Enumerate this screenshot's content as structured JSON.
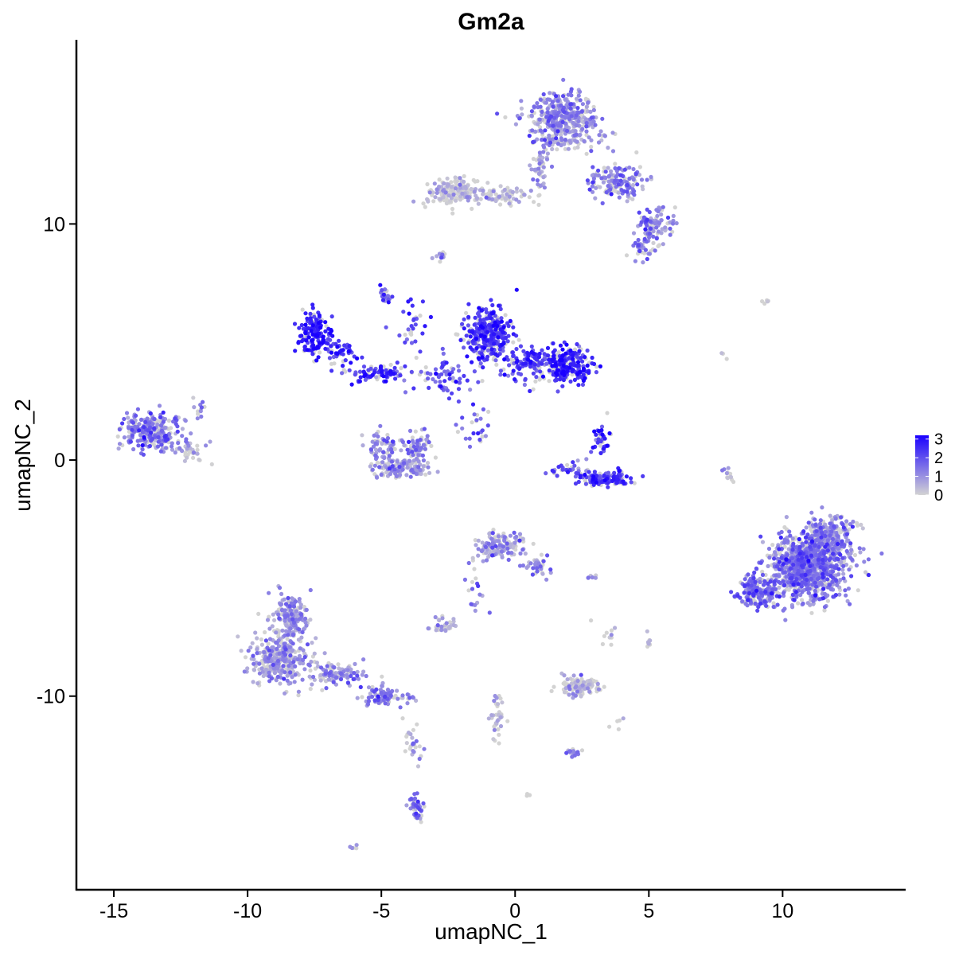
{
  "chart_data": {
    "type": "scatter",
    "title": "Gm2a",
    "xlabel": "umapNC_1",
    "ylabel": "umapNC_2",
    "xlim": [
      -16.4,
      14.6
    ],
    "ylim": [
      -18.2,
      17.8
    ],
    "x_ticks": [
      -15,
      -10,
      -5,
      0,
      5,
      10
    ],
    "x_tick_labels": [
      "-15",
      "-10",
      "-5",
      "0",
      "5",
      "10"
    ],
    "y_ticks": [
      -10,
      0,
      10
    ],
    "y_tick_labels": [
      "-10",
      "0",
      "10"
    ],
    "grid": false,
    "legend": {
      "placement": "right",
      "type": "colorbar",
      "min": 0,
      "max": 3,
      "ticks": [
        0,
        1,
        2,
        3
      ],
      "tick_labels": [
        "0",
        "1",
        "2",
        "3"
      ],
      "low_color": "#d3d3d3",
      "high_color": "#1a00ff"
    },
    "expression_scale_max": 3.2,
    "clusters": [
      {
        "x": 1.8,
        "y": 14.4,
        "sx": 1.2,
        "sy": 1.2,
        "n": 420,
        "expr": 1.0
      },
      {
        "x": 3.8,
        "y": 11.8,
        "sx": 1.0,
        "sy": 0.6,
        "n": 150,
        "expr": 1.2
      },
      {
        "x": 5.2,
        "y": 10.0,
        "sx": 0.6,
        "sy": 0.6,
        "n": 90,
        "expr": 1.3
      },
      {
        "x": 4.8,
        "y": 9.0,
        "sx": 0.5,
        "sy": 0.5,
        "n": 40,
        "expr": 1.2
      },
      {
        "x": -2.3,
        "y": 11.4,
        "sx": 0.9,
        "sy": 0.5,
        "n": 170,
        "expr": 0.3
      },
      {
        "x": -0.6,
        "y": 11.2,
        "sx": 1.0,
        "sy": 0.3,
        "n": 70,
        "expr": 0.3
      },
      {
        "x": 0.9,
        "y": 12.2,
        "sx": 0.3,
        "sy": 0.9,
        "n": 40,
        "expr": 0.6
      },
      {
        "x": -2.8,
        "y": 8.6,
        "sx": 0.2,
        "sy": 0.2,
        "n": 12,
        "expr": 1.2
      },
      {
        "x": 9.5,
        "y": 6.7,
        "sx": 0.3,
        "sy": 0.1,
        "n": 5,
        "expr": 0.1
      },
      {
        "x": -7.5,
        "y": 5.3,
        "sx": 0.6,
        "sy": 0.8,
        "n": 160,
        "expr": 2.7
      },
      {
        "x": -6.6,
        "y": 4.6,
        "sx": 0.6,
        "sy": 0.4,
        "n": 50,
        "expr": 2.4
      },
      {
        "x": -5.0,
        "y": 3.7,
        "sx": 1.1,
        "sy": 0.3,
        "n": 90,
        "expr": 2.3
      },
      {
        "x": -4.8,
        "y": 7.0,
        "sx": 0.2,
        "sy": 0.4,
        "n": 22,
        "expr": 2.0
      },
      {
        "x": -3.9,
        "y": 5.7,
        "sx": 0.5,
        "sy": 1.2,
        "n": 30,
        "expr": 2.1
      },
      {
        "x": -2.7,
        "y": 3.5,
        "sx": 1.0,
        "sy": 0.8,
        "n": 60,
        "expr": 2.0
      },
      {
        "x": -1.5,
        "y": 1.5,
        "sx": 0.6,
        "sy": 0.8,
        "n": 25,
        "expr": 2.0
      },
      {
        "x": -1.0,
        "y": 5.3,
        "sx": 0.8,
        "sy": 1.1,
        "n": 330,
        "expr": 2.3
      },
      {
        "x": 0.5,
        "y": 4.1,
        "sx": 0.8,
        "sy": 0.6,
        "n": 120,
        "expr": 2.2
      },
      {
        "x": 2.0,
        "y": 4.0,
        "sx": 0.8,
        "sy": 0.7,
        "n": 230,
        "expr": 2.6
      },
      {
        "x": -4.9,
        "y": 0.6,
        "sx": 0.6,
        "sy": 0.6,
        "n": 60,
        "expr": 1.0
      },
      {
        "x": -4.3,
        "y": -0.3,
        "sx": 1.0,
        "sy": 0.4,
        "n": 140,
        "expr": 0.9
      },
      {
        "x": -3.6,
        "y": 0.6,
        "sx": 0.4,
        "sy": 0.7,
        "n": 60,
        "expr": 1.2
      },
      {
        "x": 3.3,
        "y": -0.8,
        "sx": 0.9,
        "sy": 0.3,
        "n": 130,
        "expr": 2.2
      },
      {
        "x": 3.2,
        "y": 0.8,
        "sx": 0.3,
        "sy": 0.6,
        "n": 35,
        "expr": 2.3
      },
      {
        "x": 2.0,
        "y": -0.4,
        "sx": 0.8,
        "sy": 0.3,
        "n": 30,
        "expr": 2.0
      },
      {
        "x": -13.6,
        "y": 1.2,
        "sx": 0.9,
        "sy": 0.7,
        "n": 260,
        "expr": 1.3
      },
      {
        "x": -12.2,
        "y": 0.4,
        "sx": 0.5,
        "sy": 0.4,
        "n": 35,
        "expr": 0.7
      },
      {
        "x": -11.8,
        "y": 2.1,
        "sx": 0.3,
        "sy": 0.4,
        "n": 12,
        "expr": 1.2
      },
      {
        "x": 8.0,
        "y": -0.6,
        "sx": 0.2,
        "sy": 0.6,
        "n": 12,
        "expr": 0.3
      },
      {
        "x": 7.8,
        "y": 4.5,
        "sx": 0.1,
        "sy": 0.3,
        "n": 3,
        "expr": 0.2
      },
      {
        "x": 11.0,
        "y": -4.5,
        "sx": 1.3,
        "sy": 1.3,
        "n": 1000,
        "expr": 1.3
      },
      {
        "x": 9.1,
        "y": -5.6,
        "sx": 0.7,
        "sy": 0.6,
        "n": 200,
        "expr": 1.5
      },
      {
        "x": 11.8,
        "y": -3.2,
        "sx": 0.7,
        "sy": 0.8,
        "n": 200,
        "expr": 1.0
      },
      {
        "x": -0.6,
        "y": -3.6,
        "sx": 0.8,
        "sy": 0.5,
        "n": 140,
        "expr": 0.8
      },
      {
        "x": 0.8,
        "y": -4.5,
        "sx": 0.5,
        "sy": 0.4,
        "n": 40,
        "expr": 1.1
      },
      {
        "x": -1.5,
        "y": -5.5,
        "sx": 0.3,
        "sy": 1.0,
        "n": 18,
        "expr": 1.2
      },
      {
        "x": -2.6,
        "y": -7.0,
        "sx": 0.5,
        "sy": 0.3,
        "n": 35,
        "expr": 0.4
      },
      {
        "x": 2.9,
        "y": -5.0,
        "sx": 0.3,
        "sy": 0.1,
        "n": 6,
        "expr": 0.5
      },
      {
        "x": 5.0,
        "y": -7.6,
        "sx": 0.1,
        "sy": 0.3,
        "n": 8,
        "expr": 0.3
      },
      {
        "x": -8.4,
        "y": -6.6,
        "sx": 0.6,
        "sy": 0.8,
        "n": 180,
        "expr": 0.8
      },
      {
        "x": -8.8,
        "y": -8.5,
        "sx": 1.1,
        "sy": 1.0,
        "n": 330,
        "expr": 0.8
      },
      {
        "x": -6.6,
        "y": -9.1,
        "sx": 0.8,
        "sy": 0.4,
        "n": 90,
        "expr": 1.1
      },
      {
        "x": -4.8,
        "y": -10.0,
        "sx": 0.7,
        "sy": 0.4,
        "n": 90,
        "expr": 1.2
      },
      {
        "x": -3.8,
        "y": -12.0,
        "sx": 0.3,
        "sy": 1.0,
        "n": 25,
        "expr": 0.6
      },
      {
        "x": -3.7,
        "y": -14.7,
        "sx": 0.3,
        "sy": 0.5,
        "n": 45,
        "expr": 1.5
      },
      {
        "x": -6.0,
        "y": -16.4,
        "sx": 0.2,
        "sy": 0.1,
        "n": 5,
        "expr": 0.1
      },
      {
        "x": 2.4,
        "y": -9.6,
        "sx": 0.7,
        "sy": 0.3,
        "n": 130,
        "expr": 0.2
      },
      {
        "x": -0.7,
        "y": -10.8,
        "sx": 0.3,
        "sy": 1.2,
        "n": 35,
        "expr": 0.3
      },
      {
        "x": 2.2,
        "y": -12.4,
        "sx": 0.3,
        "sy": 0.2,
        "n": 18,
        "expr": 1.0
      },
      {
        "x": 0.5,
        "y": -14.2,
        "sx": 0.1,
        "sy": 0.1,
        "n": 3,
        "expr": 0.2
      },
      {
        "x": 3.5,
        "y": -7.5,
        "sx": 0.5,
        "sy": 0.6,
        "n": 10,
        "expr": 0.3
      },
      {
        "x": 4.0,
        "y": -11.0,
        "sx": 0.4,
        "sy": 0.4,
        "n": 5,
        "expr": 0.2
      }
    ]
  }
}
